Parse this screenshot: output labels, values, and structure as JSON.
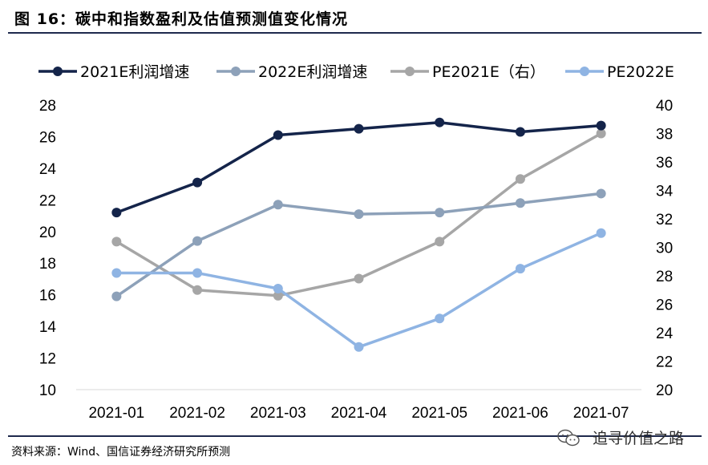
{
  "header": {
    "title": "图  16：碳中和指数盈利及估值预测值变化情况"
  },
  "footer": {
    "source": "资料来源：Wind、国信证券经济研究所预测",
    "watermark": "追寻价值之路"
  },
  "chart_data": {
    "type": "line",
    "categories": [
      "2021-01",
      "2021-02",
      "2021-03",
      "2021-04",
      "2021-05",
      "2021-06",
      "2021-07"
    ],
    "y_left": {
      "min": 10,
      "max": 28,
      "ticks": [
        10,
        12,
        14,
        16,
        18,
        20,
        22,
        24,
        26,
        28
      ]
    },
    "y_right": {
      "min": 20,
      "max": 40,
      "ticks": [
        20,
        22,
        24,
        26,
        28,
        30,
        32,
        34,
        36,
        38,
        40
      ]
    },
    "grid": false,
    "legend_position": "top",
    "series": [
      {
        "name": "2021E利润增速",
        "axis": "left",
        "color": "#14244a",
        "values": [
          21.2,
          23.1,
          26.1,
          26.5,
          26.9,
          26.3,
          26.7
        ]
      },
      {
        "name": "2022E利润增速",
        "axis": "left",
        "color": "#8da1b9",
        "values": [
          15.9,
          19.4,
          21.7,
          21.1,
          21.2,
          21.8,
          22.4
        ]
      },
      {
        "name": "PE2021E（右）",
        "axis": "right",
        "color": "#a6a6a6",
        "values": [
          30.4,
          27.0,
          26.6,
          27.8,
          30.4,
          34.8,
          38.0
        ]
      },
      {
        "name": "PE2022E",
        "axis": "right",
        "color": "#8fb4e3",
        "values": [
          28.2,
          28.2,
          27.1,
          23.0,
          25.0,
          28.5,
          31.0
        ]
      }
    ]
  }
}
